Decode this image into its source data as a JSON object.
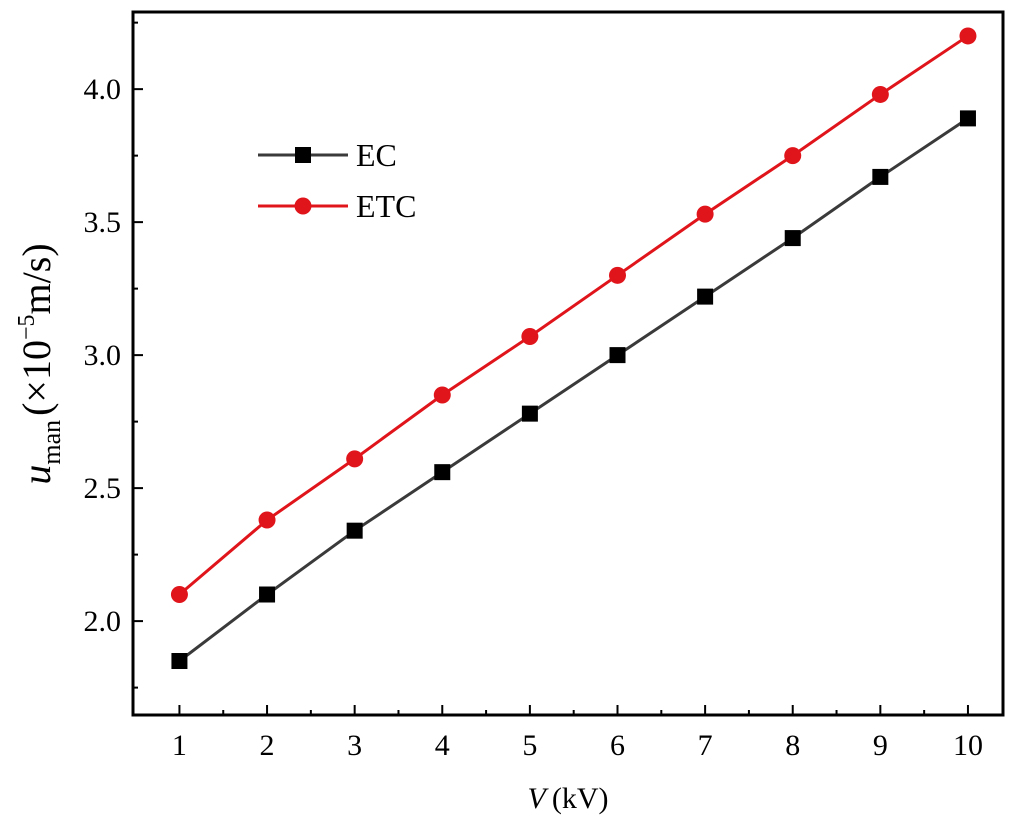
{
  "chart_data": {
    "type": "line",
    "title": "",
    "xlabel": "V (kV)",
    "xlabel_var": "V",
    "xlabel_unit": "(kV)",
    "ylabel_var": "u",
    "ylabel_sub": "man",
    "ylabel_unit_pre": "(×10",
    "ylabel_exp": "−5",
    "ylabel_unit_post": "m/s)",
    "xlim": [
      0.47,
      10.4
    ],
    "ylim": [
      1.647,
      4.29
    ],
    "x": [
      1,
      2,
      3,
      4,
      5,
      6,
      7,
      8,
      9,
      10
    ],
    "xticks": [
      "1",
      "2",
      "3",
      "4",
      "5",
      "6",
      "7",
      "8",
      "9",
      "10"
    ],
    "yticks": [
      "2.0",
      "2.5",
      "3.0",
      "3.5",
      "4.0"
    ],
    "ytick_values": [
      2.0,
      2.5,
      3.0,
      3.5,
      4.0
    ],
    "grid": false,
    "legend_position": "top-left",
    "series": [
      {
        "name": "EC",
        "color": "#000000",
        "line_color": "#3a3a3a",
        "marker": "square",
        "values": [
          1.85,
          2.1,
          2.34,
          2.56,
          2.78,
          3.0,
          3.22,
          3.44,
          3.67,
          3.89
        ]
      },
      {
        "name": "ETC",
        "color": "#e0141b",
        "line_color": "#e0141b",
        "marker": "circle",
        "values": [
          2.1,
          2.38,
          2.61,
          2.85,
          3.07,
          3.3,
          3.53,
          3.75,
          3.98,
          4.2
        ]
      }
    ]
  }
}
